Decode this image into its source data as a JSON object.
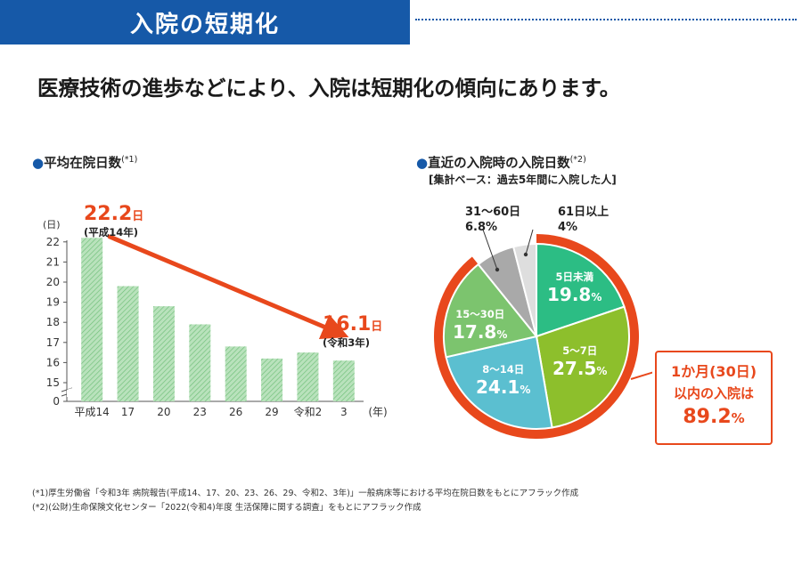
{
  "header": {
    "title": "入院の短期化"
  },
  "lead": "医療技術の進歩などにより、入院は短期化の傾向にあります。",
  "left": {
    "title_dot": "●",
    "title": "平均在院日数",
    "title_note": "(*1)",
    "unit": "(日)",
    "x_unit": "(年)",
    "first": {
      "value": "22.2",
      "unit": "日",
      "year": "(平成14年)"
    },
    "last": {
      "value": "16.1",
      "unit": "日",
      "year": "(令和3年)"
    }
  },
  "right": {
    "title_dot": "●",
    "title": "直近の入院時の入院日数",
    "title_note": "(*2)",
    "subtitle": "[集計ベース：過去5年間に入院した人]",
    "summary": {
      "line1": "1か月(30日)",
      "line2": "以内の入院は",
      "value": "89.2",
      "pct": "%"
    }
  },
  "notes": [
    "(*1)厚生労働省「令和3年 病院報告(平成14、17、20、23、26、29、令和2、3年)」一般病床等における平均在院日数をもとにアフラック作成",
    "(*2)(公財)生命保険文化センター「2022(令和4)年度 生活保障に関する調査」をもとにアフラック作成"
  ],
  "chart_data": [
    {
      "type": "bar",
      "categories": [
        "平成14",
        "17",
        "20",
        "23",
        "26",
        "29",
        "令和2",
        "3"
      ],
      "values": [
        22.2,
        19.8,
        18.8,
        17.9,
        16.8,
        16.2,
        16.5,
        16.1
      ],
      "yticks": [
        0,
        15,
        16,
        17,
        18,
        19,
        20,
        21,
        22
      ],
      "ylim": [
        14.5,
        22
      ],
      "axis_break": true,
      "color": "#9fd4a4",
      "trend_color": "#e8481c"
    },
    {
      "type": "pie",
      "labels": [
        "5日未満",
        "5〜7日",
        "8〜14日",
        "15〜30日",
        "31〜60日",
        "61日以上"
      ],
      "values": [
        19.8,
        27.5,
        24.1,
        17.8,
        6.8,
        4.0
      ],
      "colors": [
        "#2cbd84",
        "#8dbf2c",
        "#5bbfd0",
        "#7cc46e",
        "#a9a9a9",
        "#dedede"
      ],
      "highlight_color": "#e8481c"
    }
  ]
}
